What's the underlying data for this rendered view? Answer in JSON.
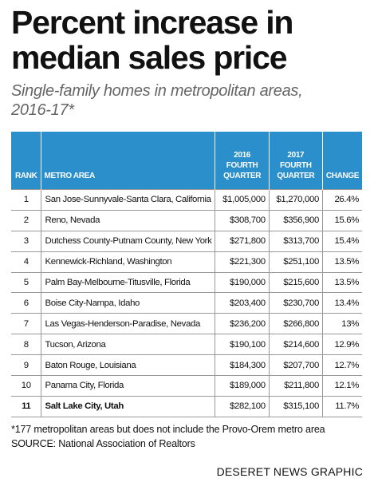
{
  "header": {
    "title": [
      "Percent increase in",
      "median sales price"
    ],
    "subtitle": [
      "Single-family homes in metropolitan areas,",
      "2016-17*"
    ]
  },
  "table": {
    "columns": [
      [
        "RANK"
      ],
      [
        "METRO AREA"
      ],
      [
        "2016",
        "FOURTH",
        "QUARTER"
      ],
      [
        "2017",
        "FOURTH",
        "QUARTER"
      ],
      [
        "CHANGE"
      ]
    ],
    "rows": [
      [
        "1",
        "San Jose-Sunnyvale-Santa Clara, California",
        "$1,005,000",
        "$1,270,000",
        "26.4%"
      ],
      [
        "2",
        "Reno, Nevada",
        "$308,700",
        "$356,900",
        "15.6%"
      ],
      [
        "3",
        "Dutchess County-Putnam County, New York",
        "$271,800",
        "$313,700",
        "15.4%"
      ],
      [
        "4",
        "Kennewick-Richland, Washington",
        "$221,300",
        "$251,100",
        "13.5%"
      ],
      [
        "5",
        "Palm Bay-Melbourne-Titusville, Florida",
        "$190,000",
        "$215,600",
        "13.5%"
      ],
      [
        "6",
        "Boise City-Nampa, Idaho",
        "$203,400",
        "$230,700",
        "13.4%"
      ],
      [
        "7",
        "Las Vegas-Henderson-Paradise, Nevada",
        "$236,200",
        "$266,800",
        "13%"
      ],
      [
        "8",
        "Tucson, Arizona",
        "$190,100",
        "$214,600",
        "12.9%"
      ],
      [
        "9",
        "Baton Rouge, Louisiana",
        "$184,300",
        "$207,700",
        "12.7%"
      ],
      [
        "10",
        "Panama City, Florida",
        "$189,000",
        "$211,800",
        "12.1%"
      ],
      [
        "11",
        "Salt Lake City, Utah",
        "$282,100",
        "$315,100",
        "11.7%"
      ]
    ]
  },
  "footer": {
    "note": "*177 metropolitan areas but does not include the Provo-Orem metro area",
    "source": "SOURCE: National Association of Realtors",
    "credit": "DESERET NEWS GRAPHIC"
  }
}
